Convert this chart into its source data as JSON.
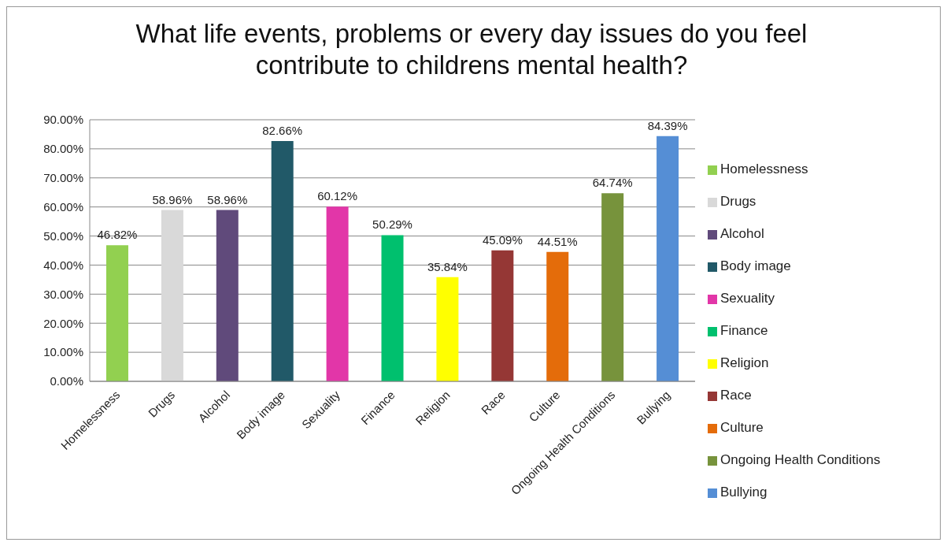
{
  "chart_data": {
    "type": "bar",
    "title": "What life events, problems or every day issues do you feel contribute to childrens mental health?",
    "categories": [
      "Homelessness",
      "Drugs",
      "Alcohol",
      "Body image",
      "Sexuality",
      "Finance",
      "Religion",
      "Race",
      "Culture",
      "Ongoing Health Conditions",
      "Bullying"
    ],
    "series": [
      {
        "name": "Homelessness",
        "color": "#92d050",
        "values": [
          46.82,
          null,
          null,
          null,
          null,
          null,
          null,
          null,
          null,
          null,
          null
        ],
        "value_labels": [
          "46.82%",
          null,
          null,
          null,
          null,
          null,
          null,
          null,
          null,
          null,
          null
        ]
      },
      {
        "name": "Drugs",
        "color": "#d9d9d9",
        "values": [
          null,
          58.96,
          null,
          null,
          null,
          null,
          null,
          null,
          null,
          null,
          null
        ],
        "value_labels": [
          null,
          "58.96%",
          null,
          null,
          null,
          null,
          null,
          null,
          null,
          null,
          null
        ]
      },
      {
        "name": "Alcohol",
        "color": "#604a7b",
        "values": [
          null,
          null,
          58.96,
          null,
          null,
          null,
          null,
          null,
          null,
          null,
          null
        ],
        "value_labels": [
          null,
          null,
          "58.96%",
          null,
          null,
          null,
          null,
          null,
          null,
          null,
          null
        ]
      },
      {
        "name": "Body image",
        "color": "#215968",
        "values": [
          null,
          null,
          null,
          82.66,
          null,
          null,
          null,
          null,
          null,
          null,
          null
        ],
        "value_labels": [
          null,
          null,
          null,
          "82.66%",
          null,
          null,
          null,
          null,
          null,
          null,
          null
        ]
      },
      {
        "name": "Sexuality",
        "color": "#e236a8",
        "values": [
          null,
          null,
          null,
          null,
          60.12,
          null,
          null,
          null,
          null,
          null,
          null
        ],
        "value_labels": [
          null,
          null,
          null,
          null,
          "60.12%",
          null,
          null,
          null,
          null,
          null,
          null
        ]
      },
      {
        "name": "Finance",
        "color": "#00c06e",
        "values": [
          null,
          null,
          null,
          null,
          null,
          50.29,
          null,
          null,
          null,
          null,
          null
        ],
        "value_labels": [
          null,
          null,
          null,
          null,
          null,
          "50.29%",
          null,
          null,
          null,
          null,
          null
        ]
      },
      {
        "name": "Religion",
        "color": "#ffff00",
        "values": [
          null,
          null,
          null,
          null,
          null,
          null,
          35.84,
          null,
          null,
          null,
          null
        ],
        "value_labels": [
          null,
          null,
          null,
          null,
          null,
          null,
          "35.84%",
          null,
          null,
          null,
          null
        ]
      },
      {
        "name": "Race",
        "color": "#953735",
        "values": [
          null,
          null,
          null,
          null,
          null,
          null,
          null,
          45.09,
          null,
          null,
          null
        ],
        "value_labels": [
          null,
          null,
          null,
          null,
          null,
          null,
          null,
          "45.09%",
          null,
          null,
          null
        ]
      },
      {
        "name": "Culture",
        "color": "#e46c0a",
        "values": [
          null,
          null,
          null,
          null,
          null,
          null,
          null,
          null,
          44.51,
          null,
          null
        ],
        "value_labels": [
          null,
          null,
          null,
          null,
          null,
          null,
          null,
          null,
          "44.51%",
          null,
          null
        ]
      },
      {
        "name": "Ongoing Health Conditions",
        "color": "#77933c",
        "values": [
          null,
          null,
          null,
          null,
          null,
          null,
          null,
          null,
          null,
          64.74,
          null
        ],
        "value_labels": [
          null,
          null,
          null,
          null,
          null,
          null,
          null,
          null,
          null,
          "64.74%",
          null
        ]
      },
      {
        "name": "Bullying",
        "color": "#558ed5",
        "values": [
          null,
          null,
          null,
          null,
          null,
          null,
          null,
          null,
          null,
          null,
          84.39
        ],
        "value_labels": [
          null,
          null,
          null,
          null,
          null,
          null,
          null,
          null,
          null,
          null,
          "84.39%"
        ]
      }
    ],
    "ylim": [
      0,
      90
    ],
    "yticks": [
      {
        "value": 0,
        "label": "0.00%"
      },
      {
        "value": 10,
        "label": "10.00%"
      },
      {
        "value": 20,
        "label": "20.00%"
      },
      {
        "value": 30,
        "label": "30.00%"
      },
      {
        "value": 40,
        "label": "40.00%"
      },
      {
        "value": 50,
        "label": "50.00%"
      },
      {
        "value": 60,
        "label": "60.00%"
      },
      {
        "value": 70,
        "label": "70.00%"
      },
      {
        "value": 80,
        "label": "80.00%"
      },
      {
        "value": 90,
        "label": "90.00%"
      }
    ],
    "grid": "y",
    "legend": "right"
  }
}
